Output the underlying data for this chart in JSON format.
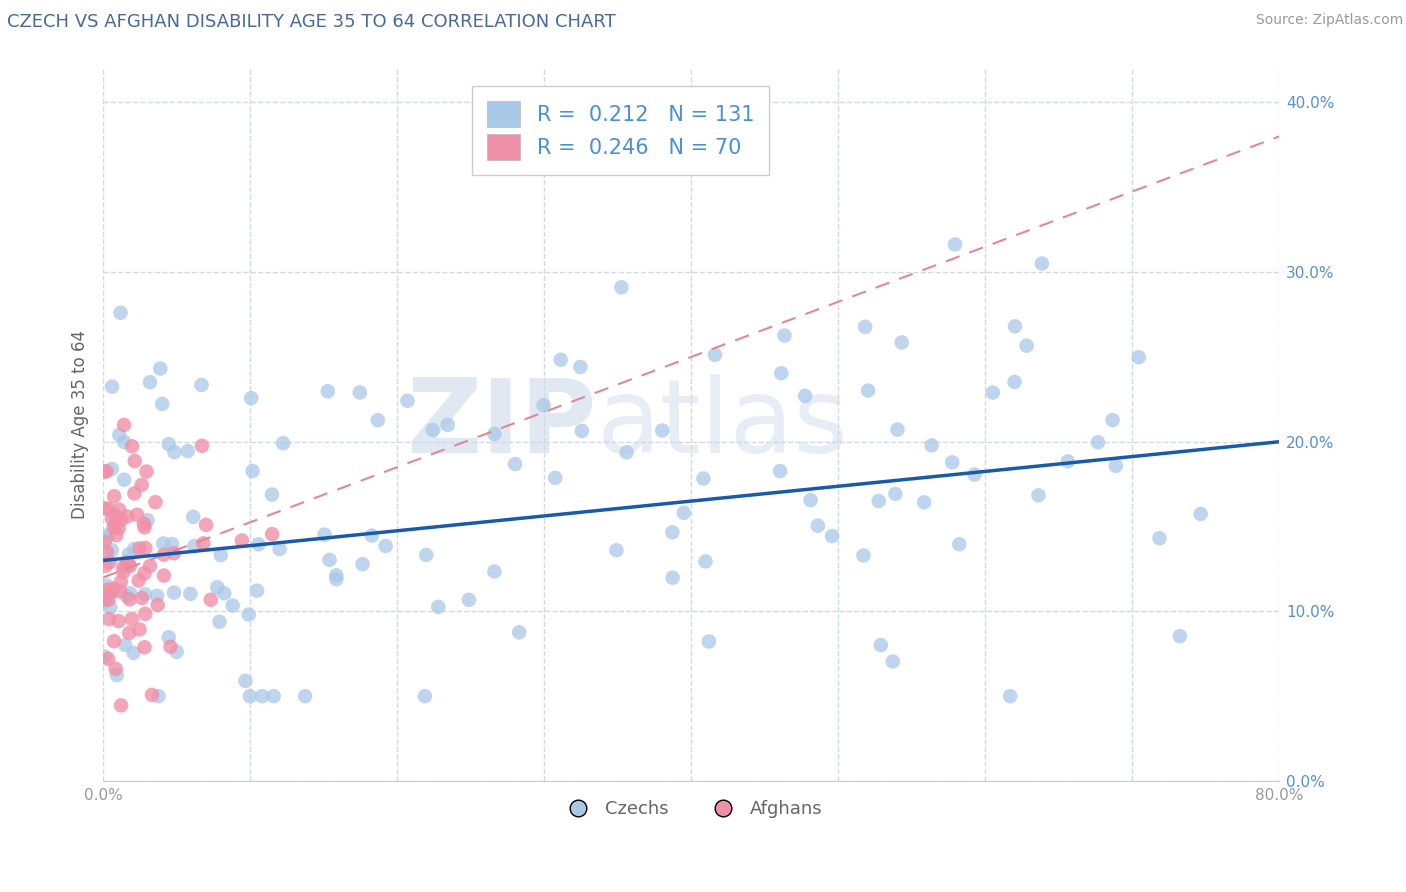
{
  "title": "CZECH VS AFGHAN DISABILITY AGE 35 TO 64 CORRELATION CHART",
  "source": "Source: ZipAtlas.com",
  "ylabel": "Disability Age 35 to 64",
  "xlim": [
    0.0,
    0.8
  ],
  "ylim": [
    0.0,
    0.42
  ],
  "xticks": [
    0.0,
    0.1,
    0.2,
    0.3,
    0.4,
    0.5,
    0.6,
    0.7,
    0.8
  ],
  "xticklabels": [
    "0.0%",
    "",
    "",
    "",
    "",
    "",
    "",
    "",
    "80.0%"
  ],
  "yticks": [
    0.0,
    0.1,
    0.2,
    0.3,
    0.4
  ],
  "yticklabels": [
    "0.0%",
    "10.0%",
    "20.0%",
    "30.0%",
    "40.0%"
  ],
  "czech_color": "#a8c8e8",
  "afghan_color": "#f090a8",
  "czech_trend_color": "#1a5aaa",
  "afghan_trend_color": "#e08898",
  "afghan_trend_linestyle": "dashed",
  "legend_czech_label": "Czechs",
  "legend_afghan_label": "Afghans",
  "R_czech": 0.212,
  "N_czech": 131,
  "R_afghan": 0.246,
  "N_afghan": 70,
  "watermark_zip": "ZIP",
  "watermark_atlas": "atlas",
  "background_color": "#ffffff",
  "grid_color": "#d0d8e8",
  "title_color": "#4a6898",
  "axis_label_color": "#666666",
  "tick_label_color": "#999999",
  "ytick_color": "#5590d0",
  "legend_text_color": "#4a90d9",
  "seed": 99
}
